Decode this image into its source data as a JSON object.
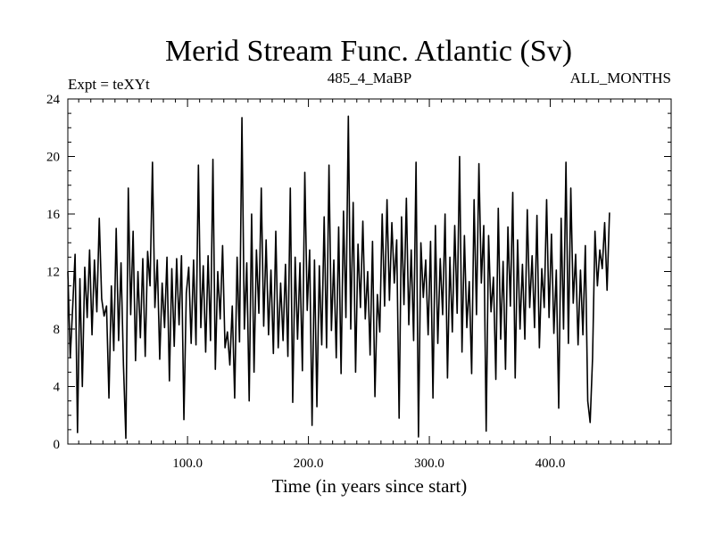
{
  "chart_data": {
    "type": "line",
    "title": "Merid Stream Func. Atlantic (Sv)",
    "subtitle_left": "Expt = teXYt",
    "subtitle_center": "485_4_MaBP",
    "subtitle_right": "ALL_MONTHS",
    "xlabel": "Time (in years since start)",
    "ylabel": "",
    "xlim": [
      1,
      500
    ],
    "ylim": [
      0,
      24
    ],
    "x_ticks": [
      100,
      200,
      300,
      400
    ],
    "x_tick_labels": [
      "100.0",
      "200.0",
      "300.0",
      "400.0"
    ],
    "y_ticks": [
      0,
      4,
      8,
      12,
      16,
      20,
      24
    ],
    "y_tick_labels": [
      "0",
      "4",
      "8",
      "12",
      "16",
      "20",
      "24"
    ],
    "grid": false,
    "legend": "none",
    "line_color": "#000000",
    "series": [
      {
        "x_start": 1,
        "x_step": 2,
        "values": [
          12.0,
          6.0,
          9.5,
          13.2,
          0.8,
          11.5,
          4.0,
          12.3,
          8.8,
          13.5,
          7.6,
          12.8,
          9.2,
          15.7,
          10.1,
          8.9,
          9.6,
          3.2,
          11.0,
          6.5,
          15.0,
          7.2,
          12.6,
          5.5,
          0.4,
          17.8,
          9.0,
          14.8,
          5.8,
          12.0,
          7.4,
          12.9,
          6.1,
          13.4,
          11.0,
          19.6,
          9.5,
          12.8,
          5.9,
          11.2,
          8.1,
          13.0,
          4.4,
          12.2,
          6.8,
          12.9,
          8.3,
          13.1,
          1.7,
          10.5,
          12.3,
          7.0,
          12.8,
          6.9,
          19.4,
          8.1,
          12.4,
          6.4,
          13.1,
          7.2,
          19.8,
          5.2,
          12.0,
          8.7,
          13.8,
          6.7,
          7.8,
          5.5,
          9.6,
          3.2,
          13.0,
          7.1,
          22.7,
          8.0,
          12.6,
          3.0,
          16.0,
          5.0,
          13.5,
          9.1,
          17.8,
          8.2,
          14.2,
          7.6,
          12.1,
          6.3,
          14.8,
          6.7,
          11.2,
          7.2,
          12.5,
          6.1,
          17.8,
          2.9,
          13.0,
          7.3,
          12.6,
          5.1,
          18.9,
          9.3,
          13.5,
          1.3,
          12.8,
          2.6,
          12.4,
          6.9,
          15.8,
          6.7,
          19.4,
          7.9,
          12.8,
          6.0,
          15.1,
          4.9,
          16.2,
          8.8,
          22.8,
          8.0,
          16.8,
          5.0,
          13.9,
          9.5,
          15.5,
          8.7,
          12.0,
          6.2,
          14.1,
          3.3,
          10.4,
          7.8,
          16.0,
          9.6,
          17.0,
          10.0,
          15.4,
          11.2,
          14.2,
          1.8,
          15.8,
          9.7,
          17.1,
          8.3,
          13.5,
          7.2,
          19.6,
          0.5,
          14.0,
          10.2,
          12.8,
          7.6,
          14.1,
          3.2,
          15.2,
          7.0,
          12.9,
          9.0,
          16.0,
          4.6,
          13.0,
          7.8,
          15.2,
          9.1,
          20.0,
          6.4,
          14.5,
          8.1,
          11.3,
          4.9,
          17.0,
          9.0,
          19.5,
          11.2,
          15.2,
          0.9,
          14.5,
          9.2,
          11.6,
          4.5,
          16.4,
          7.3,
          12.7,
          5.2,
          15.1,
          9.6,
          17.5,
          4.6,
          14.2,
          8.0,
          12.5,
          7.3,
          16.3,
          9.5,
          13.1,
          8.1,
          15.9,
          6.7,
          12.2,
          9.5,
          17.0,
          8.8,
          14.6,
          7.7,
          12.1,
          2.5,
          15.7,
          8.0,
          19.6,
          7.0,
          17.8,
          9.8,
          13.2,
          6.9,
          12.1,
          7.6,
          13.8,
          3.0,
          1.5,
          6.0,
          14.8,
          11.0,
          13.5,
          12.2,
          15.4,
          10.7,
          16.1
        ]
      }
    ]
  }
}
